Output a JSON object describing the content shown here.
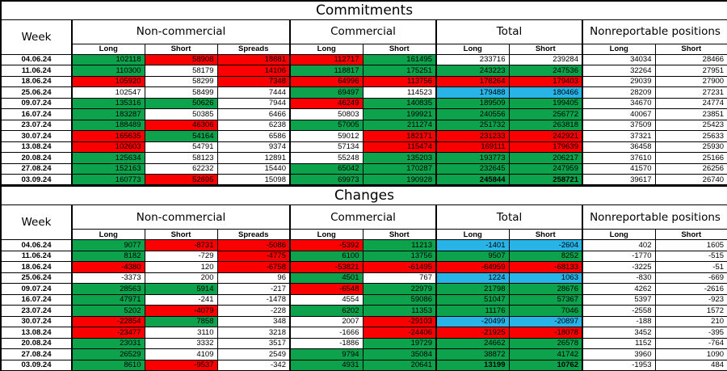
{
  "colors": {
    "green": "#0da24c",
    "red": "#fb0000",
    "blue": "#29b4e8",
    "white": "#ffffff",
    "border": "#000000"
  },
  "tables": [
    {
      "title": "Commitments",
      "week_header": "Week",
      "groups": [
        {
          "label": "Non-commercial"
        },
        {
          "label": "Commercial"
        },
        {
          "label": "Total"
        },
        {
          "label": "Nonreportable positions"
        }
      ],
      "subheaders": [
        "Long",
        "Short",
        "Spreads",
        "Long",
        "Short",
        "Long",
        "Short",
        "Long",
        "Short"
      ],
      "rows": [
        {
          "week": "04.06.24",
          "cells": [
            [
              "102118",
              "g"
            ],
            [
              "58908",
              "r"
            ],
            [
              "18881",
              "r"
            ],
            [
              "112717",
              "r"
            ],
            [
              "161495",
              "g"
            ],
            [
              "233716",
              "w"
            ],
            [
              "239284",
              "w"
            ],
            [
              "34034",
              "w"
            ],
            [
              "28466",
              "w"
            ]
          ]
        },
        {
          "week": "11.06.24",
          "cells": [
            [
              "110300",
              "g"
            ],
            [
              "58179",
              "w"
            ],
            [
              "14106",
              "r"
            ],
            [
              "118817",
              "g"
            ],
            [
              "175251",
              "g"
            ],
            [
              "243223",
              "g"
            ],
            [
              "247536",
              "g"
            ],
            [
              "32264",
              "w"
            ],
            [
              "27951",
              "w"
            ]
          ]
        },
        {
          "week": "18.06.24",
          "cells": [
            [
              "105920",
              "r"
            ],
            [
              "58299",
              "w"
            ],
            [
              "7348",
              "r"
            ],
            [
              "64996",
              "r"
            ],
            [
              "113756",
              "r"
            ],
            [
              "178264",
              "r"
            ],
            [
              "179403",
              "r"
            ],
            [
              "29039",
              "w"
            ],
            [
              "27900",
              "w"
            ]
          ]
        },
        {
          "week": "25.06.24",
          "cells": [
            [
              "102547",
              "w"
            ],
            [
              "58499",
              "w"
            ],
            [
              "7444",
              "w"
            ],
            [
              "69497",
              "g"
            ],
            [
              "114523",
              "w"
            ],
            [
              "179488",
              "b"
            ],
            [
              "180466",
              "b"
            ],
            [
              "28209",
              "w"
            ],
            [
              "27231",
              "w"
            ]
          ]
        },
        {
          "week": "09.07.24",
          "cells": [
            [
              "135316",
              "g"
            ],
            [
              "50626",
              "g"
            ],
            [
              "7944",
              "w"
            ],
            [
              "46249",
              "r"
            ],
            [
              "140835",
              "g"
            ],
            [
              "189509",
              "g"
            ],
            [
              "199405",
              "g"
            ],
            [
              "34670",
              "w"
            ],
            [
              "24774",
              "w"
            ]
          ]
        },
        {
          "week": "16.07.24",
          "cells": [
            [
              "183287",
              "g"
            ],
            [
              "50385",
              "w"
            ],
            [
              "6466",
              "w"
            ],
            [
              "50803",
              "w"
            ],
            [
              "199921",
              "g"
            ],
            [
              "240556",
              "g"
            ],
            [
              "256772",
              "g"
            ],
            [
              "40067",
              "w"
            ],
            [
              "23851",
              "w"
            ]
          ]
        },
        {
          "week": "23.07.24",
          "cells": [
            [
              "188489",
              "g"
            ],
            [
              "46306",
              "r"
            ],
            [
              "6238",
              "w"
            ],
            [
              "57005",
              "g"
            ],
            [
              "211274",
              "g"
            ],
            [
              "251732",
              "g"
            ],
            [
              "263818",
              "g"
            ],
            [
              "37509",
              "w"
            ],
            [
              "25423",
              "w"
            ]
          ]
        },
        {
          "week": "30.07.24",
          "cells": [
            [
              "165635",
              "r"
            ],
            [
              "54164",
              "g"
            ],
            [
              "6586",
              "w"
            ],
            [
              "59012",
              "w"
            ],
            [
              "182171",
              "r"
            ],
            [
              "231233",
              "r"
            ],
            [
              "242921",
              "r"
            ],
            [
              "37321",
              "w"
            ],
            [
              "25633",
              "w"
            ]
          ]
        },
        {
          "week": "13.08.24",
          "cells": [
            [
              "102603",
              "r"
            ],
            [
              "54791",
              "w"
            ],
            [
              "9374",
              "w"
            ],
            [
              "57134",
              "w"
            ],
            [
              "115474",
              "r"
            ],
            [
              "169111",
              "r"
            ],
            [
              "179639",
              "r"
            ],
            [
              "36458",
              "w"
            ],
            [
              "25930",
              "w"
            ]
          ]
        },
        {
          "week": "20.08.24",
          "cells": [
            [
              "125634",
              "g"
            ],
            [
              "58123",
              "w"
            ],
            [
              "12891",
              "w"
            ],
            [
              "55248",
              "w"
            ],
            [
              "135203",
              "g"
            ],
            [
              "193773",
              "g"
            ],
            [
              "206217",
              "g"
            ],
            [
              "37610",
              "w"
            ],
            [
              "25166",
              "w"
            ]
          ]
        },
        {
          "week": "27.08.24",
          "cells": [
            [
              "152163",
              "g"
            ],
            [
              "62232",
              "w"
            ],
            [
              "15440",
              "w"
            ],
            [
              "65042",
              "g"
            ],
            [
              "170287",
              "g"
            ],
            [
              "232645",
              "g"
            ],
            [
              "247959",
              "g"
            ],
            [
              "41570",
              "w"
            ],
            [
              "26256",
              "w"
            ]
          ]
        },
        {
          "week": "03.09.24",
          "cells": [
            [
              "160773",
              "g"
            ],
            [
              "52695",
              "r"
            ],
            [
              "15098",
              "w"
            ],
            [
              "69973",
              "g"
            ],
            [
              "190928",
              "g"
            ],
            [
              "245844",
              "gb"
            ],
            [
              "258721",
              "gb"
            ],
            [
              "39617",
              "w"
            ],
            [
              "26740",
              "w"
            ]
          ]
        }
      ]
    },
    {
      "title": "Changes",
      "week_header": "Week",
      "groups": [
        {
          "label": "Non-commercial"
        },
        {
          "label": "Commercial"
        },
        {
          "label": "Total"
        },
        {
          "label": "Nonreportable positions"
        }
      ],
      "subheaders": [
        "Long",
        "Short",
        "Spreads",
        "Long",
        "Short",
        "Long",
        "Short",
        "Long",
        "Short"
      ],
      "rows": [
        {
          "week": "04.06.24",
          "cells": [
            [
              "9077",
              "g"
            ],
            [
              "-8731",
              "r"
            ],
            [
              "-5086",
              "r"
            ],
            [
              "-5392",
              "r"
            ],
            [
              "11213",
              "g"
            ],
            [
              "-1401",
              "b"
            ],
            [
              "-2604",
              "b"
            ],
            [
              "402",
              "w"
            ],
            [
              "1605",
              "w"
            ]
          ]
        },
        {
          "week": "11.06.24",
          "cells": [
            [
              "8182",
              "g"
            ],
            [
              "-729",
              "w"
            ],
            [
              "-4775",
              "r"
            ],
            [
              "6100",
              "g"
            ],
            [
              "13756",
              "g"
            ],
            [
              "9507",
              "g"
            ],
            [
              "8252",
              "g"
            ],
            [
              "-1770",
              "w"
            ],
            [
              "-515",
              "w"
            ]
          ]
        },
        {
          "week": "18.06.24",
          "cells": [
            [
              "-4380",
              "r"
            ],
            [
              "120",
              "w"
            ],
            [
              "-6758",
              "r"
            ],
            [
              "-53821",
              "r"
            ],
            [
              "-61495",
              "r"
            ],
            [
              "-64959",
              "r"
            ],
            [
              "-68133",
              "r"
            ],
            [
              "-3225",
              "w"
            ],
            [
              "-51",
              "w"
            ]
          ]
        },
        {
          "week": "25.06.24",
          "cells": [
            [
              "-3373",
              "w"
            ],
            [
              "200",
              "w"
            ],
            [
              "96",
              "w"
            ],
            [
              "4501",
              "g"
            ],
            [
              "767",
              "w"
            ],
            [
              "1224",
              "b"
            ],
            [
              "1063",
              "b"
            ],
            [
              "-830",
              "w"
            ],
            [
              "-669",
              "w"
            ]
          ]
        },
        {
          "week": "09.07.24",
          "cells": [
            [
              "28563",
              "g"
            ],
            [
              "5914",
              "g"
            ],
            [
              "-217",
              "w"
            ],
            [
              "-6548",
              "r"
            ],
            [
              "22979",
              "g"
            ],
            [
              "21798",
              "g"
            ],
            [
              "28676",
              "g"
            ],
            [
              "4262",
              "w"
            ],
            [
              "-2616",
              "w"
            ]
          ]
        },
        {
          "week": "16.07.24",
          "cells": [
            [
              "47971",
              "g"
            ],
            [
              "-241",
              "w"
            ],
            [
              "-1478",
              "w"
            ],
            [
              "4554",
              "w"
            ],
            [
              "59086",
              "g"
            ],
            [
              "51047",
              "g"
            ],
            [
              "57367",
              "g"
            ],
            [
              "5397",
              "w"
            ],
            [
              "-923",
              "w"
            ]
          ]
        },
        {
          "week": "23.07.24",
          "cells": [
            [
              "5202",
              "g"
            ],
            [
              "-4079",
              "r"
            ],
            [
              "-228",
              "w"
            ],
            [
              "6202",
              "g"
            ],
            [
              "11353",
              "g"
            ],
            [
              "11176",
              "g"
            ],
            [
              "7046",
              "g"
            ],
            [
              "-2558",
              "w"
            ],
            [
              "1572",
              "w"
            ]
          ]
        },
        {
          "week": "30.07.24",
          "cells": [
            [
              "-22854",
              "r"
            ],
            [
              "7858",
              "g"
            ],
            [
              "348",
              "w"
            ],
            [
              "2007",
              "w"
            ],
            [
              "-29103",
              "r"
            ],
            [
              "-20499",
              "b"
            ],
            [
              "-20897",
              "b"
            ],
            [
              "-188",
              "w"
            ],
            [
              "210",
              "w"
            ]
          ]
        },
        {
          "week": "13.08.24",
          "cells": [
            [
              "-23477",
              "r"
            ],
            [
              "3110",
              "w"
            ],
            [
              "3218",
              "w"
            ],
            [
              "-1666",
              "w"
            ],
            [
              "-24406",
              "r"
            ],
            [
              "-21925",
              "r"
            ],
            [
              "-18078",
              "r"
            ],
            [
              "3452",
              "w"
            ],
            [
              "-395",
              "w"
            ]
          ]
        },
        {
          "week": "20.08.24",
          "cells": [
            [
              "23031",
              "g"
            ],
            [
              "3332",
              "w"
            ],
            [
              "3517",
              "w"
            ],
            [
              "-1886",
              "w"
            ],
            [
              "19729",
              "g"
            ],
            [
              "24662",
              "g"
            ],
            [
              "26578",
              "g"
            ],
            [
              "1152",
              "w"
            ],
            [
              "-764",
              "w"
            ]
          ]
        },
        {
          "week": "27.08.24",
          "cells": [
            [
              "26529",
              "g"
            ],
            [
              "4109",
              "w"
            ],
            [
              "2549",
              "w"
            ],
            [
              "9794",
              "g"
            ],
            [
              "35084",
              "g"
            ],
            [
              "38872",
              "g"
            ],
            [
              "41742",
              "g"
            ],
            [
              "3960",
              "w"
            ],
            [
              "1090",
              "w"
            ]
          ]
        },
        {
          "week": "03.09.24",
          "cells": [
            [
              "8610",
              "g"
            ],
            [
              "-9537",
              "r"
            ],
            [
              "-342",
              "w"
            ],
            [
              "4931",
              "g"
            ],
            [
              "20641",
              "g"
            ],
            [
              "13199",
              "gb"
            ],
            [
              "10762",
              "gb"
            ],
            [
              "-1953",
              "w"
            ],
            [
              "484",
              "w"
            ]
          ]
        }
      ]
    }
  ]
}
